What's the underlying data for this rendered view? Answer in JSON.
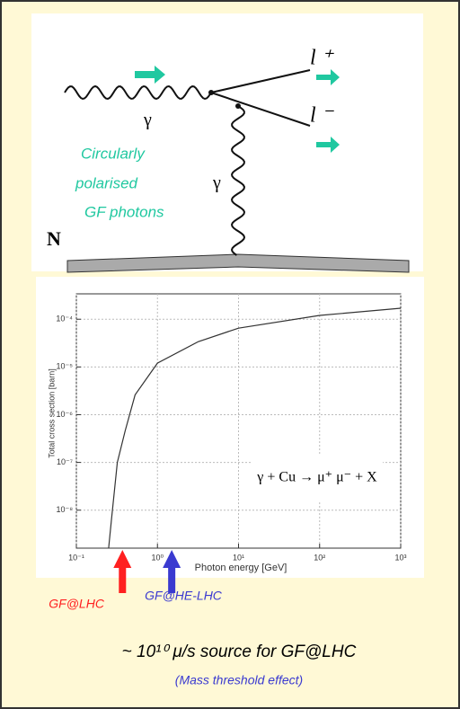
{
  "diagram": {
    "gamma_in": "γ",
    "gamma_exchange": "γ",
    "lepton_plus": "l ⁺",
    "lepton_minus": "l ⁻",
    "photon_note": [
      "Circularly",
      "polarised",
      "GF photons"
    ],
    "nucleus": "N"
  },
  "chart_data": {
    "type": "line",
    "xlabel": "Photon energy [GeV]",
    "ylabel": "Total cross section [barn]",
    "annotation": "γ + Cu → μ⁺ μ⁻ + X",
    "xscale": "log",
    "yscale": "log",
    "grid": true,
    "color": "#333333",
    "x": [
      0.25,
      0.27,
      0.32,
      0.4,
      0.53,
      1,
      3.2,
      10,
      100,
      1000
    ],
    "values": [
      1.6e-09,
      6e-09,
      1e-07,
      4.6e-07,
      2.6e-06,
      1.2e-05,
      3.4e-05,
      6.5e-05,
      0.00012,
      0.00017
    ],
    "xlim": [
      0.1,
      1000
    ],
    "ylim": [
      1.6e-09,
      0.00034
    ],
    "xticks": [
      {
        "value": 0.1,
        "label": "10⁻¹"
      },
      {
        "value": 1,
        "label": "10⁰"
      },
      {
        "value": 10,
        "label": "10¹"
      },
      {
        "value": 100,
        "label": "10²"
      },
      {
        "value": 1000,
        "label": "10³"
      }
    ],
    "yticks": [
      {
        "value": 1e-08,
        "label": "10⁻⁸"
      },
      {
        "value": 1e-07,
        "label": "10⁻⁷"
      },
      {
        "value": 1e-06,
        "label": "10⁻⁶"
      },
      {
        "value": 1e-05,
        "label": "10⁻⁵"
      },
      {
        "value": 0.0001,
        "label": "10⁻⁴"
      }
    ],
    "markers": [
      {
        "label": "GF@LHC",
        "x": 0.37,
        "color": "#ff2020"
      },
      {
        "label": "GF@HE-LHC",
        "x": 1.5,
        "color": "#3a3ad0"
      }
    ]
  },
  "caption": {
    "main": "~ 10¹⁰ μ/s source for GF@LHC",
    "note": "(Mass threshold effect)"
  }
}
